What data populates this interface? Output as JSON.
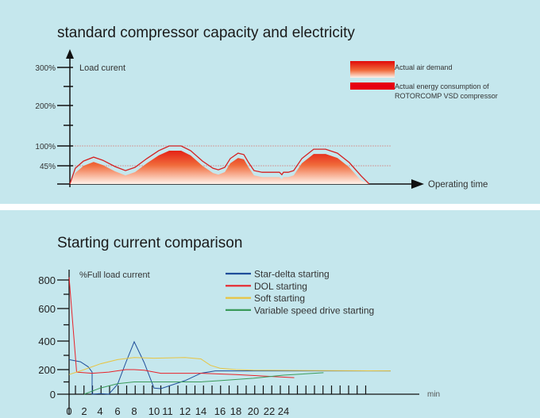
{
  "chart_data": [
    {
      "type": "area",
      "title": "standard compressor capacity and electricity",
      "ylabel": "Load curent",
      "xlabel": "Operating time",
      "yticks": [
        "300%",
        "200%",
        "100%",
        "45%"
      ],
      "reference_lines": [
        100,
        45
      ],
      "legend": [
        {
          "name": "Actual air demand",
          "color": "#e8341c"
        },
        {
          "name": "Actual energy consumption of",
          "name2": "ROTORCOMP VSD compressor",
          "color": "#e60012"
        }
      ],
      "x": [
        0,
        1.6,
        4,
        7,
        9.8,
        13.3,
        16.4,
        19.2,
        22.7,
        26.2,
        29.3,
        32.8,
        35.6,
        39.1,
        42.2,
        43.8,
        45.7,
        47.3,
        49.6,
        51.3,
        52.7,
        54.3,
        56.7,
        60.2,
        61.8,
        62.5,
        63,
        64.4,
        66,
        68.4,
        71.9,
        75.4,
        78.9,
        82.4,
        85.9,
        88.3
      ],
      "values": [
        0,
        39,
        58,
        69,
        60,
        43,
        33,
        41,
        65,
        87,
        100,
        100,
        87,
        58,
        39,
        35,
        41,
        65,
        80,
        76,
        54,
        33,
        29,
        29,
        29,
        23,
        29,
        29,
        33,
        65,
        91,
        91,
        80,
        54,
        20,
        0
      ]
    },
    {
      "type": "line",
      "title": "Starting current comparison",
      "ylabel": "%Full load current",
      "xlabel": "min",
      "xticks": [
        "0",
        "2",
        "4",
        "6",
        "8",
        "10",
        "11",
        "12",
        "14",
        "16",
        "18",
        "20",
        "22",
        "24"
      ],
      "yticks": [
        "800",
        "600",
        "400",
        "200",
        "0"
      ],
      "legend_placement": "top",
      "series": [
        {
          "name": "Star-delta starting",
          "color": "#1f4e9a",
          "x": [
            0,
            1.5,
            2.5,
            3,
            3,
            4,
            5,
            6,
            7,
            8,
            9,
            10,
            10.5,
            12,
            14,
            15.5,
            39
          ],
          "y": [
            270,
            255,
            220,
            180,
            0,
            5,
            0,
            80,
            250,
            395,
            250,
            50,
            45,
            110,
            170,
            190,
            190
          ]
        },
        {
          "name": "DOL starting",
          "color": "#e8232a",
          "x": [
            0,
            1,
            2,
            3,
            5,
            7,
            8,
            9,
            10.5,
            14,
            18,
            22,
            25.5
          ],
          "y": [
            820,
            180,
            175,
            170,
            180,
            200,
            200,
            195,
            170,
            170,
            160,
            145,
            135
          ]
        },
        {
          "name": "Soft starting",
          "color": "#e8c440",
          "x": [
            0,
            2,
            4,
            6,
            8,
            10,
            12,
            14,
            15,
            16,
            18,
            20,
            39
          ],
          "y": [
            160,
            200,
            240,
            270,
            285,
            280,
            285,
            275,
            230,
            210,
            200,
            195,
            190
          ]
        },
        {
          "name": "Variable speed drive starting",
          "color": "#3a9a5a",
          "x": [
            2,
            4,
            6,
            8,
            10,
            14,
            16,
            20,
            24,
            29.6
          ],
          "y": [
            0,
            50,
            85,
            100,
            100,
            100,
            110,
            130,
            155,
            175
          ]
        }
      ]
    }
  ]
}
